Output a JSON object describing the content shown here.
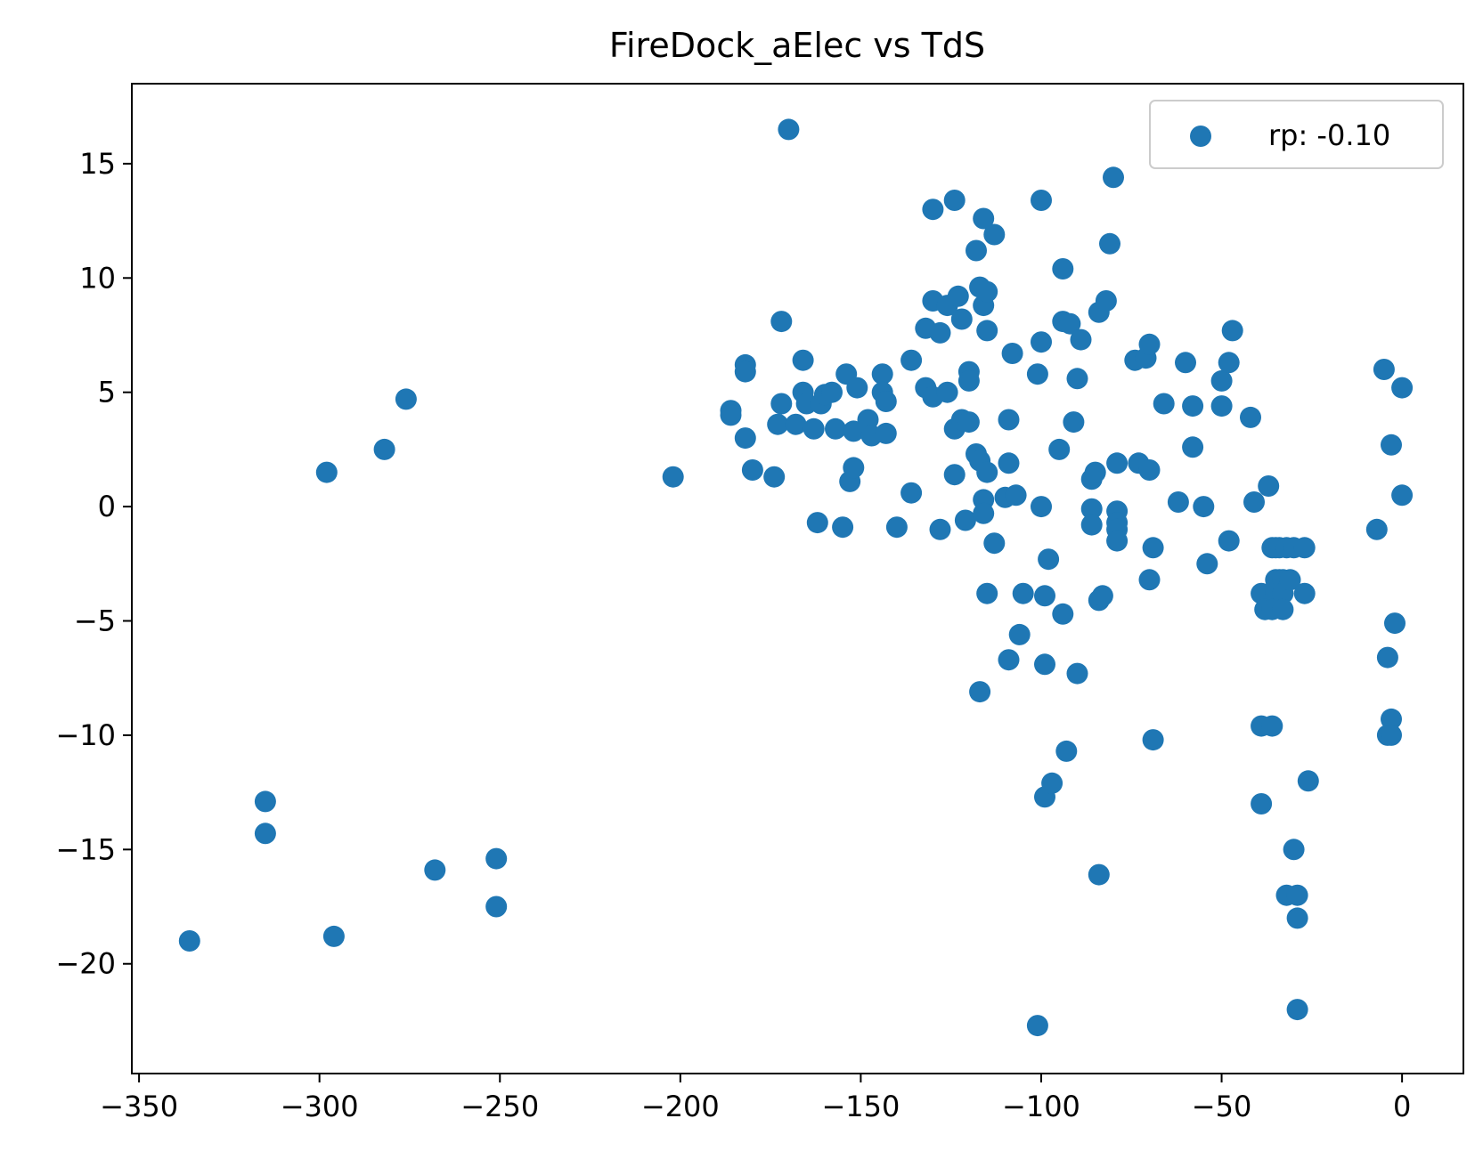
{
  "chart_data": {
    "type": "scatter",
    "title": "FireDock_aElec vs TdS",
    "xlabel": "",
    "ylabel": "",
    "xlim": [
      -352,
      17
    ],
    "ylim": [
      -24.8,
      18.5
    ],
    "xticks": [
      -350,
      -300,
      -250,
      -200,
      -150,
      -100,
      -50,
      0
    ],
    "yticks": [
      15,
      10,
      5,
      0,
      -5,
      -10,
      -15,
      -20
    ],
    "xtick_labels": [
      "−350",
      "−300",
      "−250",
      "−200",
      "−150",
      "−100",
      "−50",
      "0"
    ],
    "ytick_labels": [
      "15",
      "10",
      "5",
      "0",
      "−5",
      "−10",
      "−15",
      "−20"
    ],
    "grid": false,
    "legend": {
      "position": "top-right"
    },
    "series": [
      {
        "name": "rp: -0.10",
        "color": "#1f77b4",
        "points": [
          [
            -336,
            -19.0
          ],
          [
            -315,
            -12.9
          ],
          [
            -315,
            -14.3
          ],
          [
            -298,
            1.5
          ],
          [
            -296,
            -18.8
          ],
          [
            -282,
            2.5
          ],
          [
            -276,
            4.7
          ],
          [
            -268,
            -15.9
          ],
          [
            -251,
            -15.4
          ],
          [
            -251,
            -17.5
          ],
          [
            -202,
            1.3
          ],
          [
            -186,
            4.2
          ],
          [
            -186,
            4.0
          ],
          [
            -182,
            6.2
          ],
          [
            -182,
            5.9
          ],
          [
            -182,
            3.0
          ],
          [
            -180,
            1.6
          ],
          [
            -174,
            1.3
          ],
          [
            -173,
            3.6
          ],
          [
            -172,
            8.1
          ],
          [
            -172,
            4.5
          ],
          [
            -170,
            16.5
          ],
          [
            -168,
            3.6
          ],
          [
            -166,
            6.4
          ],
          [
            -166,
            5.0
          ],
          [
            -165,
            4.5
          ],
          [
            -163,
            3.4
          ],
          [
            -162,
            -0.7
          ],
          [
            -161,
            4.5
          ],
          [
            -160,
            4.9
          ],
          [
            -158,
            5.0
          ],
          [
            -157,
            3.4
          ],
          [
            -154,
            5.8
          ],
          [
            -155,
            -0.9
          ],
          [
            -153,
            1.1
          ],
          [
            -152,
            1.7
          ],
          [
            -152,
            3.3
          ],
          [
            -151,
            5.2
          ],
          [
            -148,
            3.8
          ],
          [
            -147,
            3.1
          ],
          [
            -144,
            5.8
          ],
          [
            -144,
            5.0
          ],
          [
            -143,
            4.6
          ],
          [
            -143,
            3.2
          ],
          [
            -140,
            -0.9
          ],
          [
            -136,
            6.4
          ],
          [
            -136,
            0.6
          ],
          [
            -132,
            7.8
          ],
          [
            -132,
            5.2
          ],
          [
            -130,
            13.0
          ],
          [
            -130,
            9.0
          ],
          [
            -130,
            4.8
          ],
          [
            -128,
            7.6
          ],
          [
            -128,
            -1.0
          ],
          [
            -126,
            8.8
          ],
          [
            -126,
            5.0
          ],
          [
            -124,
            13.4
          ],
          [
            -124,
            3.4
          ],
          [
            -124,
            1.4
          ],
          [
            -123,
            9.2
          ],
          [
            -122,
            8.2
          ],
          [
            -122,
            3.8
          ],
          [
            -121,
            -0.6
          ],
          [
            -120,
            5.9
          ],
          [
            -120,
            5.5
          ],
          [
            -120,
            3.7
          ],
          [
            -118,
            11.2
          ],
          [
            -118,
            2.3
          ],
          [
            -117,
            9.6
          ],
          [
            -117,
            2.0
          ],
          [
            -117,
            -8.1
          ],
          [
            -116,
            12.6
          ],
          [
            -116,
            8.8
          ],
          [
            -116,
            0.3
          ],
          [
            -116,
            -0.3
          ],
          [
            -115,
            9.4
          ],
          [
            -115,
            1.5
          ],
          [
            -115,
            7.7
          ],
          [
            -115,
            -3.8
          ],
          [
            -113,
            11.9
          ],
          [
            -113,
            -1.6
          ],
          [
            -110,
            0.4
          ],
          [
            -109,
            3.8
          ],
          [
            -109,
            1.9
          ],
          [
            -108,
            6.7
          ],
          [
            -109,
            -6.7
          ],
          [
            -107,
            0.5
          ],
          [
            -106,
            -5.6
          ],
          [
            -105,
            -3.8
          ],
          [
            -100,
            13.4
          ],
          [
            -101,
            5.8
          ],
          [
            -100,
            0.0
          ],
          [
            -100,
            7.2
          ],
          [
            -99,
            -3.9
          ],
          [
            -99,
            -6.9
          ],
          [
            -99,
            -12.7
          ],
          [
            -101,
            -22.7
          ],
          [
            -98,
            -2.3
          ],
          [
            -97,
            -12.1
          ],
          [
            -95,
            2.5
          ],
          [
            -94,
            10.4
          ],
          [
            -94,
            8.1
          ],
          [
            -92,
            8.0
          ],
          [
            -94,
            -4.7
          ],
          [
            -93,
            -10.7
          ],
          [
            -91,
            3.7
          ],
          [
            -90,
            5.6
          ],
          [
            -89,
            7.3
          ],
          [
            -90,
            -7.3
          ],
          [
            -86,
            1.2
          ],
          [
            -85,
            1.5
          ],
          [
            -86,
            -0.1
          ],
          [
            -86,
            -0.8
          ],
          [
            -84,
            8.5
          ],
          [
            -84,
            -4.1
          ],
          [
            -83,
            -3.9
          ],
          [
            -82,
            9.0
          ],
          [
            -81,
            11.5
          ],
          [
            -80,
            14.4
          ],
          [
            -79,
            1.9
          ],
          [
            -79,
            -0.2
          ],
          [
            -79,
            -0.7
          ],
          [
            -79,
            -1.0
          ],
          [
            -79,
            -1.5
          ],
          [
            -84,
            -16.1
          ],
          [
            -74,
            6.4
          ],
          [
            -73,
            1.9
          ],
          [
            -71,
            6.5
          ],
          [
            -70,
            7.1
          ],
          [
            -70,
            1.6
          ],
          [
            -69,
            -1.8
          ],
          [
            -70,
            -3.2
          ],
          [
            -69,
            -10.2
          ],
          [
            -66,
            4.5
          ],
          [
            -62,
            0.2
          ],
          [
            -60,
            6.3
          ],
          [
            -58,
            4.4
          ],
          [
            -58,
            2.6
          ],
          [
            -55,
            0.0
          ],
          [
            -54,
            -2.5
          ],
          [
            -50,
            5.5
          ],
          [
            -50,
            4.4
          ],
          [
            -48,
            6.3
          ],
          [
            -47,
            7.7
          ],
          [
            -48,
            -1.5
          ],
          [
            -42,
            3.9
          ],
          [
            -41,
            0.2
          ],
          [
            -39,
            -3.8
          ],
          [
            -38,
            -4.5
          ],
          [
            -39,
            -9.6
          ],
          [
            -39,
            -13.0
          ],
          [
            -37,
            0.9
          ],
          [
            -36,
            -1.8
          ],
          [
            -35,
            -1.8
          ],
          [
            -35,
            -3.2
          ],
          [
            -35,
            -3.8
          ],
          [
            -36,
            -4.5
          ],
          [
            -36,
            -9.6
          ],
          [
            -34,
            -3.2
          ],
          [
            -34,
            -1.8
          ],
          [
            -33,
            -3.2
          ],
          [
            -33,
            -3.8
          ],
          [
            -33,
            -4.5
          ],
          [
            -32,
            -1.8
          ],
          [
            -31,
            -3.2
          ],
          [
            -32,
            -17.0
          ],
          [
            -30,
            -1.8
          ],
          [
            -30,
            -15.0
          ],
          [
            -29,
            -17.0
          ],
          [
            -29,
            -18.0
          ],
          [
            -29,
            -22.0
          ],
          [
            -27,
            -3.8
          ],
          [
            -27,
            -1.8
          ],
          [
            -26,
            -12.0
          ],
          [
            -7,
            -1.0
          ],
          [
            -5,
            6.0
          ],
          [
            -4,
            -10.0
          ],
          [
            -4,
            -6.6
          ],
          [
            -3,
            2.7
          ],
          [
            -3,
            -9.3
          ],
          [
            -3,
            -10.0
          ],
          [
            -2,
            -5.1
          ],
          [
            0,
            5.2
          ],
          [
            0,
            0.5
          ]
        ]
      }
    ]
  }
}
